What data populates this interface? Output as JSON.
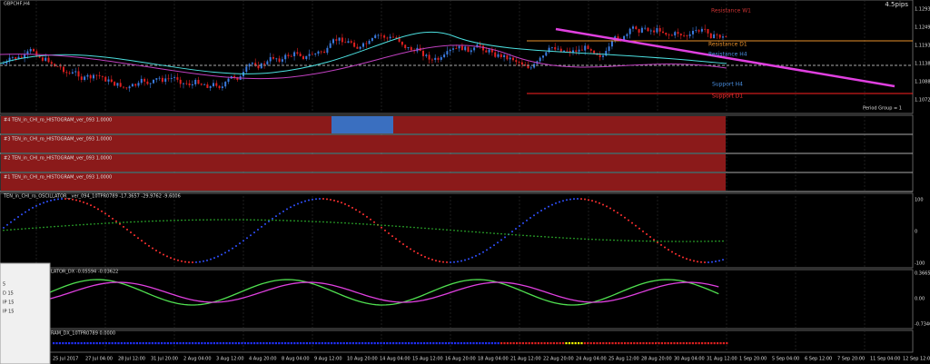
{
  "header": {
    "symbol": "GBPCHF,H4",
    "spread": "4.5pips"
  },
  "levels": [
    "Resistance W1",
    "Resistance D1",
    "Resistance H4",
    "Support H4",
    "Support D1"
  ],
  "period_group": "Period Group = 1",
  "price_labels": [
    "1.12930",
    "1.12490",
    "1.11937",
    "1.11387",
    "1.10887",
    "1.10720"
  ],
  "histogram_panels": [
    "#4 TEN_in_CHI_ro_HISTOGRAM_ver_093 1.0000",
    "#3 TEN_in_CHI_ro_HISTOGRAM_ver_093 1.0000",
    "#2 TEN_in_CHI_ro_HISTOGRAM_ver_093 1.0000",
    "#1 TEN_in_CHI_ro_HISTOGRAM_ver_093 1.0000"
  ],
  "oscillator": {
    "label": "TEN_in_CHI_ro_OSCILLATOR__ver_094_10TPR0789 -17.3657 -29.9762 -9.6006",
    "axis": [
      "100",
      "0",
      "-100"
    ]
  },
  "dx_panel": {
    "label": "LATOR_DX -0.05594 -0.03622",
    "axis": [
      "0.36652",
      "0.00",
      "-0.73466"
    ]
  },
  "bottom_panel": {
    "label": "RAM_DX_10TPR0789 0.0000"
  },
  "popup": [
    "5",
    "D 15",
    "IP 15",
    "IP 15"
  ],
  "x_labels": [
    "25 Jul 2017",
    "27 Jul 04:00",
    "28 Jul 12:00",
    "31 Jul 20:00",
    "2 Aug 04:00",
    "3 Aug 12:00",
    "4 Aug 20:00",
    "8 Aug 04:00",
    "9 Aug 12:00",
    "10 Aug 20:00",
    "14 Aug 04:00",
    "15 Aug 12:00",
    "16 Aug 20:00",
    "18 Aug 04:00",
    "21 Aug 12:00",
    "22 Aug 20:00",
    "24 Aug 04:00",
    "25 Aug 12:00",
    "28 Aug 20:00",
    "30 Aug 04:00",
    "31 Aug 12:00",
    "1 Sep 20:00",
    "5 Sep 04:00",
    "6 Sep 12:00",
    "7 Sep 20:00",
    "11 Sep 04:00",
    "12 Sep 12:00"
  ]
}
